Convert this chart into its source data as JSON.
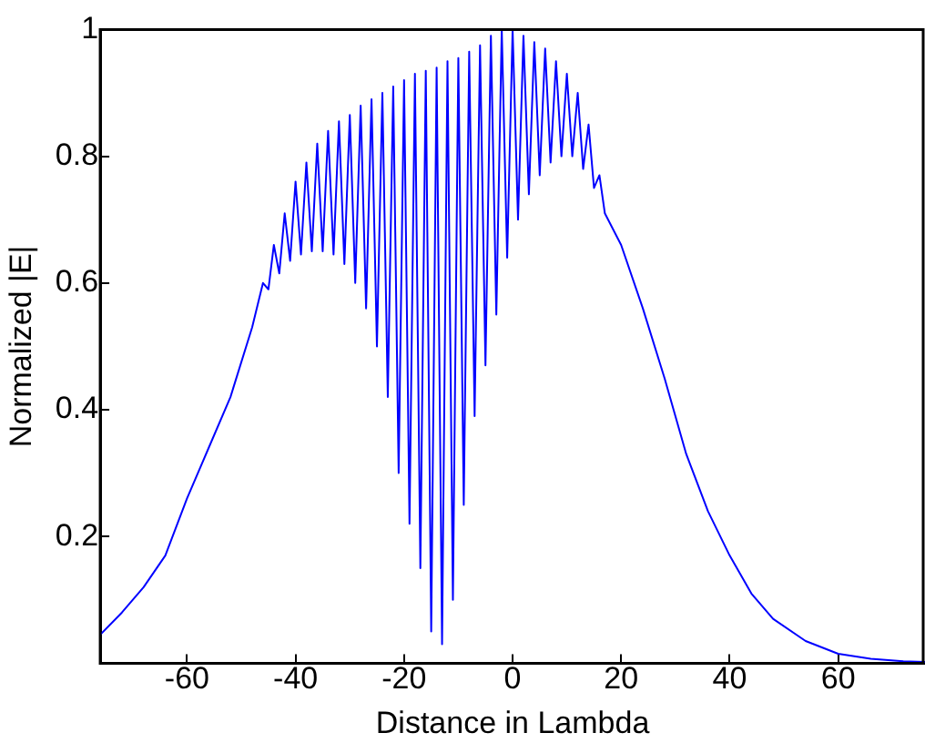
{
  "chart_data": {
    "type": "line",
    "xlabel": "Distance in Lambda",
    "ylabel": "Normalized |E|",
    "xlim": [
      -76,
      76
    ],
    "ylim": [
      0,
      1
    ],
    "xticks": [
      -60,
      -40,
      -20,
      0,
      20,
      40,
      60
    ],
    "yticks": [
      0.2,
      0.4,
      0.6,
      0.8,
      1
    ],
    "grid": false,
    "legend": false,
    "marker": "none",
    "line_style": "solid",
    "x": [
      -76,
      -72,
      -68,
      -64,
      -60,
      -56,
      -52,
      -48,
      -46,
      -45,
      -44,
      -43,
      -42,
      -41,
      -40,
      -39,
      -38,
      -37,
      -36,
      -35,
      -34,
      -33,
      -32,
      -31,
      -30,
      -29,
      -28,
      -27,
      -26,
      -25,
      -24,
      -23,
      -22,
      -21,
      -20,
      -19,
      -18,
      -17,
      -16,
      -15,
      -14,
      -13,
      -12,
      -11,
      -10,
      -9,
      -8,
      -7,
      -6,
      -5,
      -4,
      -3,
      -2,
      -1,
      0,
      1,
      2,
      3,
      4,
      5,
      6,
      7,
      8,
      9,
      10,
      11,
      12,
      13,
      14,
      15,
      16,
      17,
      20,
      24,
      28,
      32,
      36,
      40,
      44,
      48,
      54,
      60,
      66,
      72,
      76
    ],
    "series": [
      {
        "color": "#0000ff",
        "values": [
          0.045,
          0.08,
          0.12,
          0.17,
          0.26,
          0.34,
          0.42,
          0.53,
          0.6,
          0.59,
          0.66,
          0.615,
          0.71,
          0.635,
          0.76,
          0.645,
          0.79,
          0.65,
          0.82,
          0.65,
          0.84,
          0.645,
          0.855,
          0.63,
          0.865,
          0.6,
          0.88,
          0.56,
          0.89,
          0.5,
          0.9,
          0.42,
          0.91,
          0.3,
          0.92,
          0.22,
          0.93,
          0.15,
          0.935,
          0.05,
          0.94,
          0.03,
          0.95,
          0.1,
          0.955,
          0.25,
          0.965,
          0.39,
          0.975,
          0.47,
          0.99,
          0.55,
          1,
          0.64,
          1,
          0.7,
          0.99,
          0.74,
          0.98,
          0.77,
          0.97,
          0.79,
          0.95,
          0.8,
          0.93,
          0.8,
          0.9,
          0.78,
          0.85,
          0.75,
          0.77,
          0.71,
          0.66,
          0.56,
          0.45,
          0.33,
          0.24,
          0.17,
          0.11,
          0.07,
          0.035,
          0.015,
          0.007,
          0.003,
          0.002
        ]
      }
    ]
  }
}
